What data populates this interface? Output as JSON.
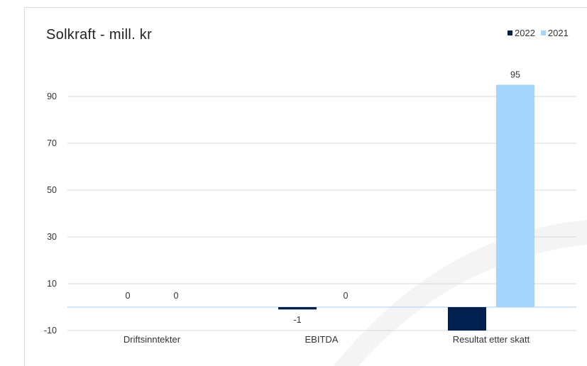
{
  "chart_data": {
    "type": "bar",
    "title": "Solkraft - mill. kr",
    "categories": [
      "Driftsinntekter",
      "EBITDA",
      "Resultat etter skatt"
    ],
    "series": [
      {
        "name": "2022",
        "values": [
          0,
          -1,
          -10
        ],
        "color": "#002050"
      },
      {
        "name": "2021",
        "values": [
          0,
          0,
          95
        ],
        "color": "#a6d5fb"
      }
    ],
    "data_labels": [
      {
        "series": 0,
        "category": 0,
        "text": "0"
      },
      {
        "series": 1,
        "category": 0,
        "text": "0"
      },
      {
        "series": 0,
        "category": 1,
        "text": "-1"
      },
      {
        "series": 1,
        "category": 1,
        "text": "0"
      },
      {
        "series": 1,
        "category": 2,
        "text": "95"
      }
    ],
    "y_ticks": [
      -10,
      10,
      30,
      50,
      70,
      90
    ],
    "ylim": [
      -10,
      105
    ],
    "grid": true,
    "legend_position": "top-right",
    "xlabel": "",
    "ylabel": ""
  }
}
